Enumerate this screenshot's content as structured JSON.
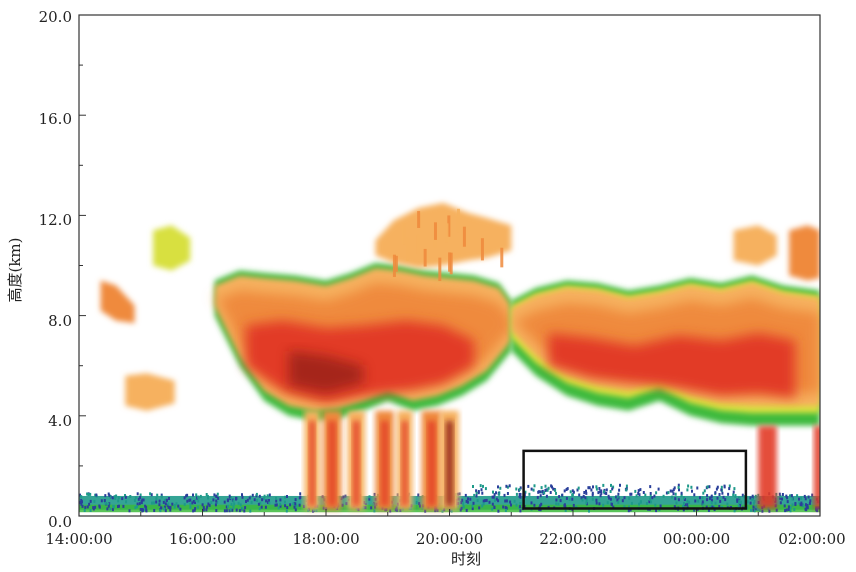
{
  "chart_data": {
    "type": "heatmap",
    "title": "",
    "xlabel": "时刻",
    "ylabel": "高度(km)",
    "x_ticks": [
      "14:00:00",
      "16:00:00",
      "18:00:00",
      "20:00:00",
      "22:00:00",
      "00:00:00",
      "02:00:00"
    ],
    "y_ticks": [
      "0.0",
      "4.0",
      "8.0",
      "12.0",
      "16.0",
      "20.0"
    ],
    "xlim_hours": [
      14,
      26
    ],
    "ylim_km": [
      0,
      20
    ],
    "colors": {
      "weak_blue": "#2a3f9a",
      "teal": "#1e9a8a",
      "green": "#3cba3c",
      "yellow": "#d8e040",
      "orange_light": "#f6b15e",
      "orange": "#ef8a3c",
      "red": "#e23a26",
      "dark_red": "#8c1f12"
    },
    "echo_regions": [
      {
        "name": "boundary-layer-echo",
        "x_start_hour": 14.0,
        "x_end_hour": 26.0,
        "y_bottom_km": 0.2,
        "y_top_km": 0.9,
        "intensity": "weak"
      },
      {
        "name": "main-cloud-system",
        "x_start_hour": 16.2,
        "x_end_hour": 21.0,
        "y_bottom_km": 4.0,
        "y_top_km": 9.8,
        "intensity": "strong"
      },
      {
        "name": "upper-cirrus",
        "x_start_hour": 18.8,
        "x_end_hour": 21.0,
        "y_bottom_km": 10.0,
        "y_top_km": 12.6,
        "intensity": "moderate"
      },
      {
        "name": "precipitation-shafts",
        "x_start_hour": 17.6,
        "x_end_hour": 20.2,
        "y_bottom_km": 0.2,
        "y_top_km": 4.0,
        "intensity": "strong"
      },
      {
        "name": "late-cloud-system",
        "x_start_hour": 21.0,
        "x_end_hour": 26.0,
        "y_bottom_km": 3.6,
        "y_top_km": 9.6,
        "intensity": "strong"
      },
      {
        "name": "early-small-cloud-upper",
        "x_start_hour": 14.3,
        "x_end_hour": 14.9,
        "y_bottom_km": 7.6,
        "y_top_km": 9.6,
        "intensity": "moderate"
      },
      {
        "name": "early-small-cloud-mid",
        "x_start_hour": 14.7,
        "x_end_hour": 15.6,
        "y_bottom_km": 4.2,
        "y_top_km": 5.6,
        "intensity": "moderate"
      }
    ],
    "highlight_box": {
      "x_start_hour": 21.2,
      "x_end_hour": 24.8,
      "y_bottom_km": 0.3,
      "y_top_km": 2.6
    }
  }
}
